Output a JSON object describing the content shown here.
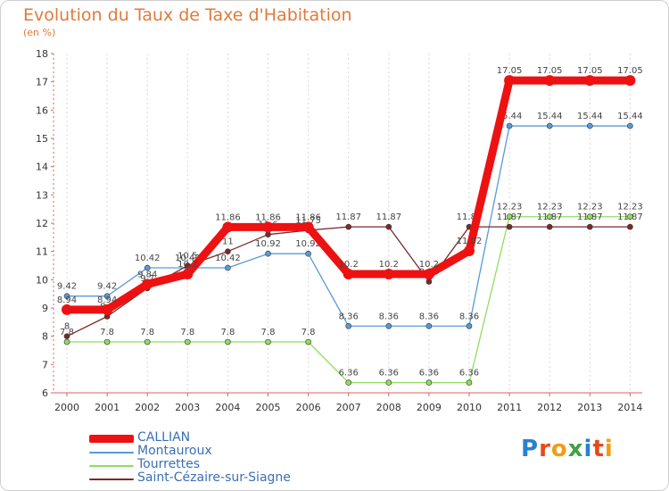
{
  "title": "Evolution du Taux de Taxe d'Habitation",
  "subtitle": "(en %)",
  "logo": {
    "text": "Proxiti",
    "colors": [
      "#2b7fd1",
      "#e64a19",
      "#f39c12",
      "#43a047",
      "#2b7fd1",
      "#e64a19",
      "#f39c12"
    ]
  },
  "chart_data": {
    "type": "line",
    "title": "Evolution du Taux de Taxe d'Habitation",
    "ylabel": "(en %)",
    "xlabel": "",
    "ylim": [
      6,
      18
    ],
    "yticks": [
      6,
      7,
      8,
      9,
      10,
      11,
      12,
      13,
      14,
      15,
      16,
      17,
      18
    ],
    "x": [
      "2000",
      "2001",
      "2002",
      "2003",
      "2004",
      "2005",
      "2006",
      "2007",
      "2008",
      "2009",
      "2010",
      "2011",
      "2012",
      "2013",
      "2014"
    ],
    "grid": "vertical dashed",
    "legend_position": "bottom-left",
    "series": [
      {
        "name": "CALLIAN",
        "color": "#ee1111",
        "thick": true,
        "values": [
          8.94,
          8.94,
          9.84,
          10.2,
          11.86,
          11.86,
          11.86,
          10.2,
          10.2,
          10.2,
          11.02,
          17.05,
          17.05,
          17.05,
          17.05
        ],
        "labels": [
          "8.94",
          "8.94",
          "9.84",
          "10.2",
          "11.86",
          "11.86",
          "11.86",
          "10.2",
          "10.2",
          "10.2",
          "11.02",
          "17.05",
          "17.05",
          "17.05",
          "17.05"
        ]
      },
      {
        "name": "Montauroux",
        "color": "#5a9ad6",
        "thick": false,
        "values": [
          9.42,
          9.42,
          10.42,
          10.42,
          10.42,
          10.92,
          10.92,
          8.36,
          8.36,
          8.36,
          8.36,
          15.44,
          15.44,
          15.44,
          15.44
        ],
        "labels": [
          "9.42",
          "9.42",
          "10.42",
          "10.42",
          "10.42",
          "10.92",
          "10.92",
          "8.36",
          "8.36",
          "8.36",
          "8.36",
          "15.44",
          "15.44",
          "15.44",
          "15.44"
        ]
      },
      {
        "name": "Tourrettes",
        "color": "#90dd60",
        "thick": false,
        "values": [
          7.8,
          7.8,
          7.8,
          7.8,
          7.8,
          7.8,
          7.8,
          6.36,
          6.36,
          6.36,
          6.36,
          12.23,
          12.23,
          12.23,
          12.23
        ],
        "labels": [
          "7.8",
          "7.8",
          "7.8",
          "7.8",
          "7.8",
          "7.8",
          "7.8",
          "6.36",
          "6.36",
          "6.36",
          "6.36",
          "12.23",
          "12.23",
          "12.23",
          "12.23"
        ]
      },
      {
        "name": "Saint-Cézaire-sur-Siagne",
        "color": "#7a2a2a",
        "thick": false,
        "values": [
          8,
          8.7,
          9.7,
          10.5,
          11,
          11.6,
          11.75,
          11.87,
          11.87,
          9.93,
          11.87,
          11.87,
          11.87,
          11.87,
          11.87
        ],
        "labels": [
          "8",
          "8.7",
          "9.7",
          "10.5",
          "11",
          "11.6",
          "11.75",
          "11.87",
          "11.87",
          "9.93",
          "11.87",
          "11.87",
          "11.87",
          "11.87",
          "11.87"
        ]
      }
    ]
  }
}
